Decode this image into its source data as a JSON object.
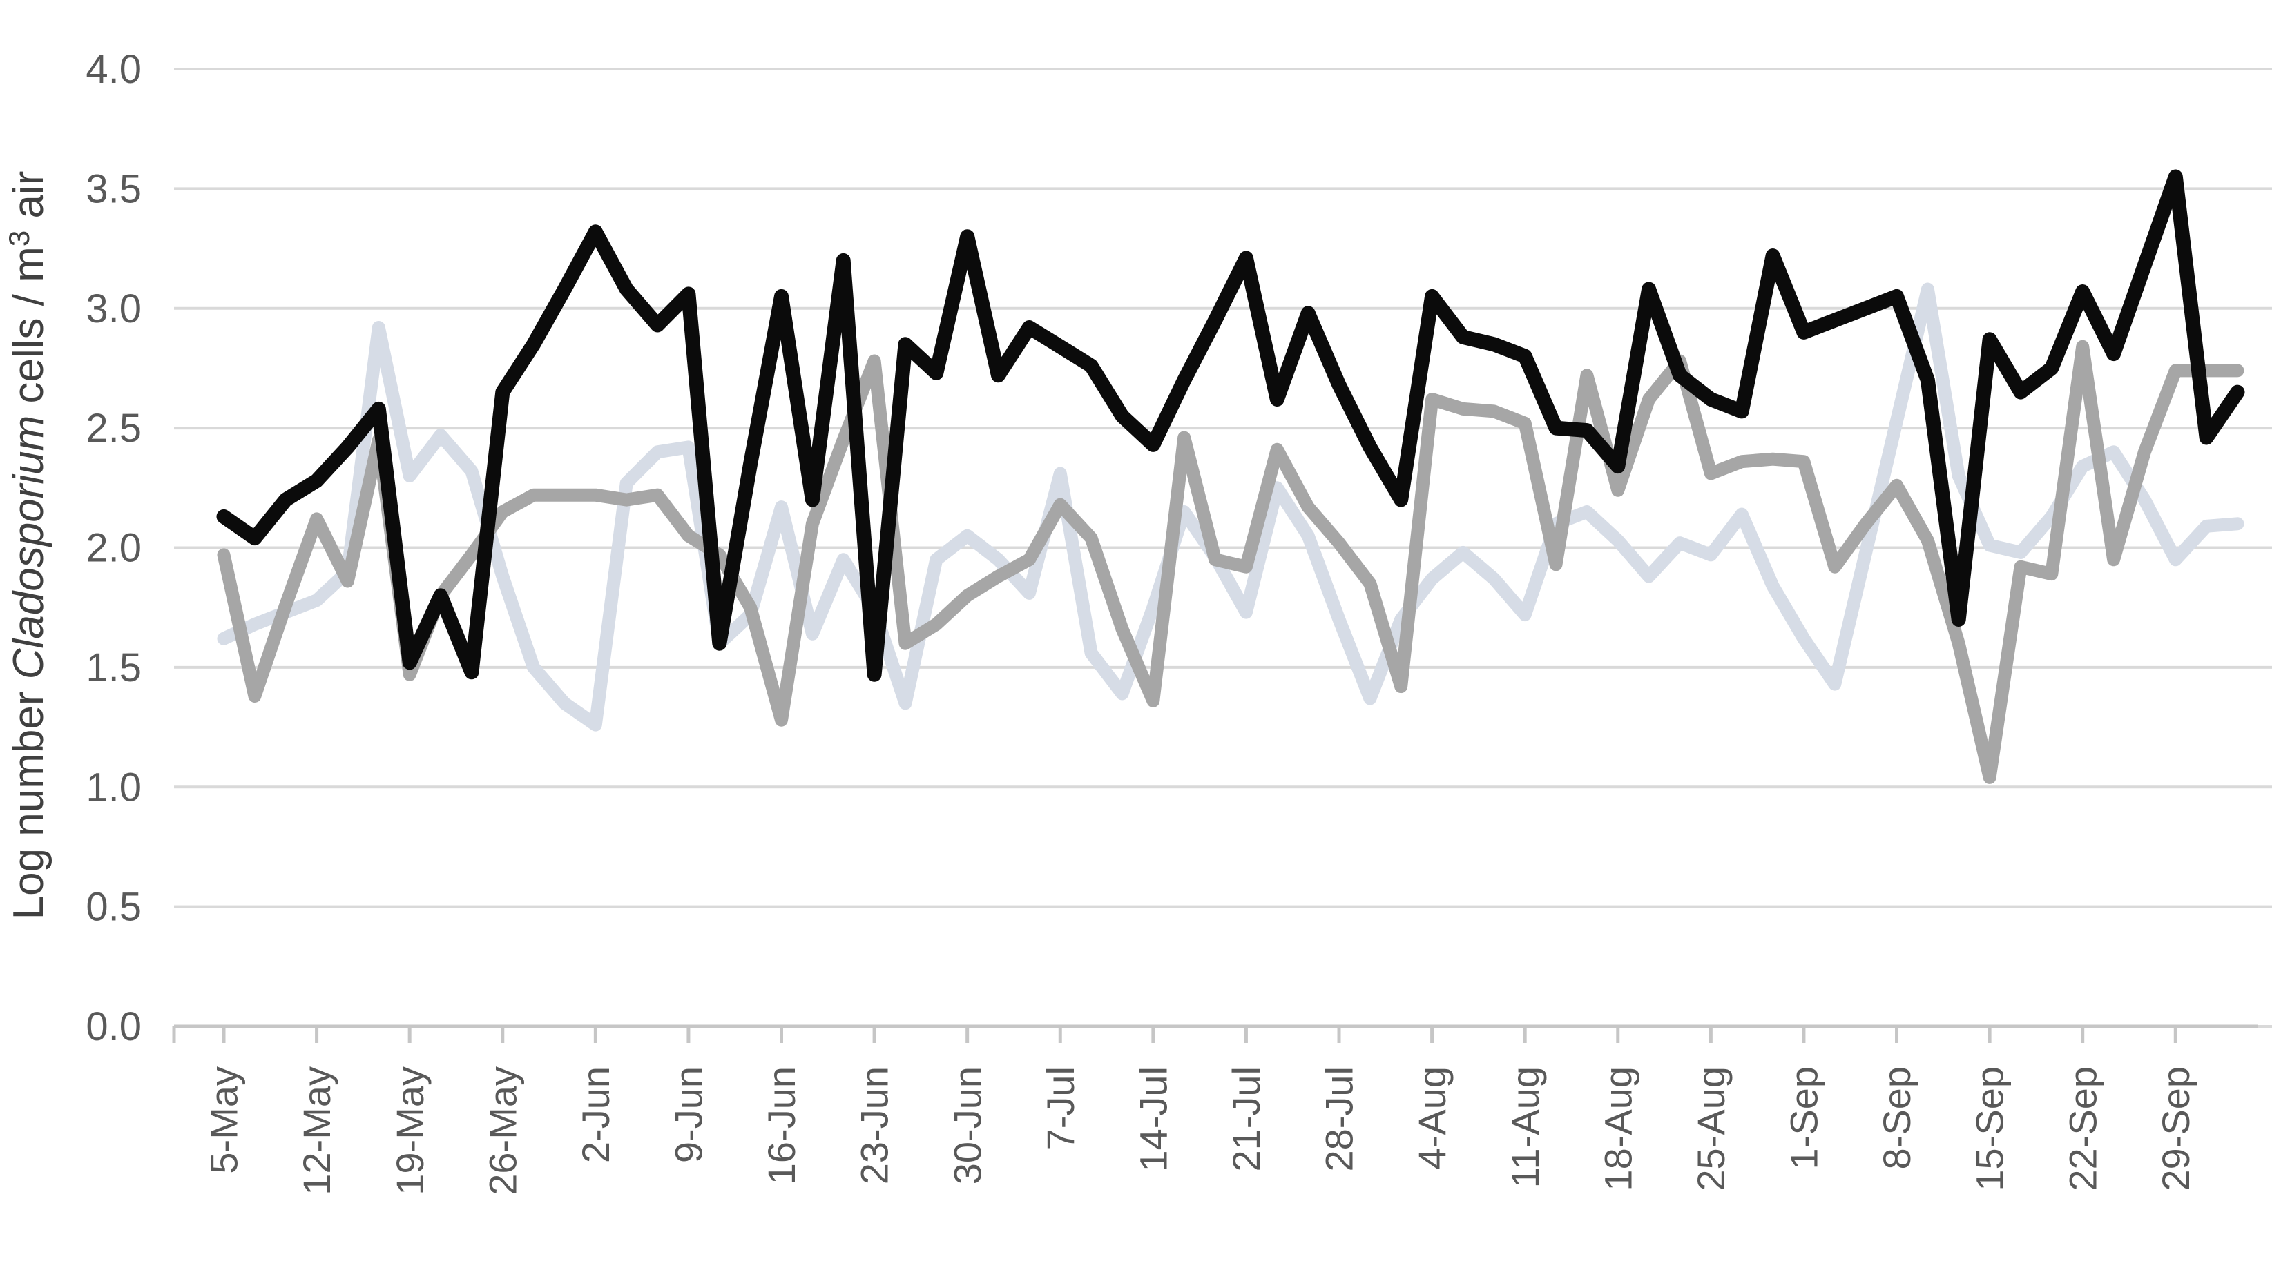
{
  "chart_data": {
    "type": "line",
    "title": "",
    "ylabel_plain": "Log number Cladosporium cells / m³ air",
    "ylabel_parts": {
      "prefix": "Log number ",
      "italic": "Cladosporium",
      "middle": " cells / m",
      "superscript": "3",
      "suffix": " air"
    },
    "ylim": [
      0.0,
      4.0
    ],
    "ytick_step": 0.5,
    "ytick_labels": [
      "0.0",
      "0.5",
      "1.0",
      "1.5",
      "2.0",
      "2.5",
      "3.0",
      "3.5",
      "4.0"
    ],
    "categories": [
      "5-May",
      "12-May",
      "19-May",
      "26-May",
      "2-Jun",
      "9-Jun",
      "16-Jun",
      "23-Jun",
      "30-Jun",
      "7-Jul",
      "14-Jul",
      "21-Jul",
      "28-Jul",
      "4-Aug",
      "11-Aug",
      "18-Aug",
      "25-Aug",
      "1-Sep",
      "8-Sep",
      "15-Sep",
      "22-Sep",
      "29-Sep"
    ],
    "points_per_category": 3,
    "grid": true,
    "legend_position": "none",
    "axis_color": "#c6c6c6",
    "gridline_color": "#d9d9d9",
    "series": [
      {
        "name": "light-gray",
        "color": "#d6dce6",
        "stroke_width": 19,
        "values": [
          1.62,
          1.68,
          1.73,
          1.78,
          1.9,
          2.92,
          2.3,
          2.47,
          2.32,
          1.88,
          1.5,
          1.35,
          1.26,
          2.27,
          2.4,
          2.42,
          1.6,
          1.72,
          2.17,
          1.64,
          1.95,
          1.74,
          1.35,
          1.95,
          2.05,
          1.95,
          1.81,
          2.31,
          1.56,
          1.39,
          1.75,
          2.15,
          1.96,
          1.73,
          2.25,
          2.05,
          1.7,
          1.37,
          1.7,
          1.87,
          1.98,
          1.87,
          1.72,
          2.1,
          2.15,
          2.03,
          1.88,
          2.02,
          1.97,
          2.14,
          1.84,
          1.62,
          1.43,
          1.98,
          2.53,
          3.08,
          2.3,
          2.01,
          1.98,
          2.13,
          2.34,
          2.4,
          2.2,
          1.95,
          2.09,
          2.1
        ]
      },
      {
        "name": "gray",
        "color": "#a6a6a6",
        "stroke_width": 19,
        "values": [
          1.97,
          1.38,
          1.76,
          2.12,
          1.86,
          2.45,
          1.47,
          1.8,
          1.97,
          2.15,
          2.22,
          2.22,
          2.22,
          2.2,
          2.22,
          2.05,
          1.97,
          1.75,
          1.28,
          2.1,
          2.45,
          2.78,
          1.6,
          1.68,
          1.8,
          1.88,
          1.95,
          2.18,
          2.04,
          1.66,
          1.36,
          2.46,
          1.95,
          1.92,
          2.41,
          2.17,
          2.02,
          1.85,
          1.42,
          2.62,
          2.58,
          2.57,
          2.52,
          1.93,
          2.72,
          2.24,
          2.62,
          2.78,
          2.31,
          2.36,
          2.37,
          2.36,
          1.92,
          2.1,
          2.26,
          2.03,
          1.6,
          1.04,
          1.92,
          1.89,
          2.84,
          1.95,
          2.4,
          2.74,
          2.74,
          2.74
        ]
      },
      {
        "name": "black",
        "color": "#0b0b0b",
        "stroke_width": 21,
        "values": [
          2.13,
          2.04,
          2.2,
          2.28,
          2.42,
          2.58,
          1.52,
          1.8,
          1.48,
          2.65,
          2.85,
          3.08,
          3.32,
          3.08,
          2.93,
          3.06,
          1.6,
          2.35,
          3.05,
          2.2,
          3.2,
          1.47,
          2.85,
          2.73,
          3.3,
          2.72,
          2.92,
          2.84,
          2.76,
          2.55,
          2.43,
          2.7,
          2.95,
          3.21,
          2.62,
          2.98,
          2.68,
          2.42,
          2.2,
          3.05,
          2.88,
          2.85,
          2.8,
          2.5,
          2.49,
          2.34,
          3.08,
          2.72,
          2.62,
          2.57,
          3.22,
          2.9,
          2.95,
          3.0,
          3.05,
          2.7,
          1.7,
          2.87,
          2.65,
          2.75,
          3.07,
          2.81,
          3.18,
          3.55,
          2.46,
          2.65
        ]
      }
    ]
  }
}
